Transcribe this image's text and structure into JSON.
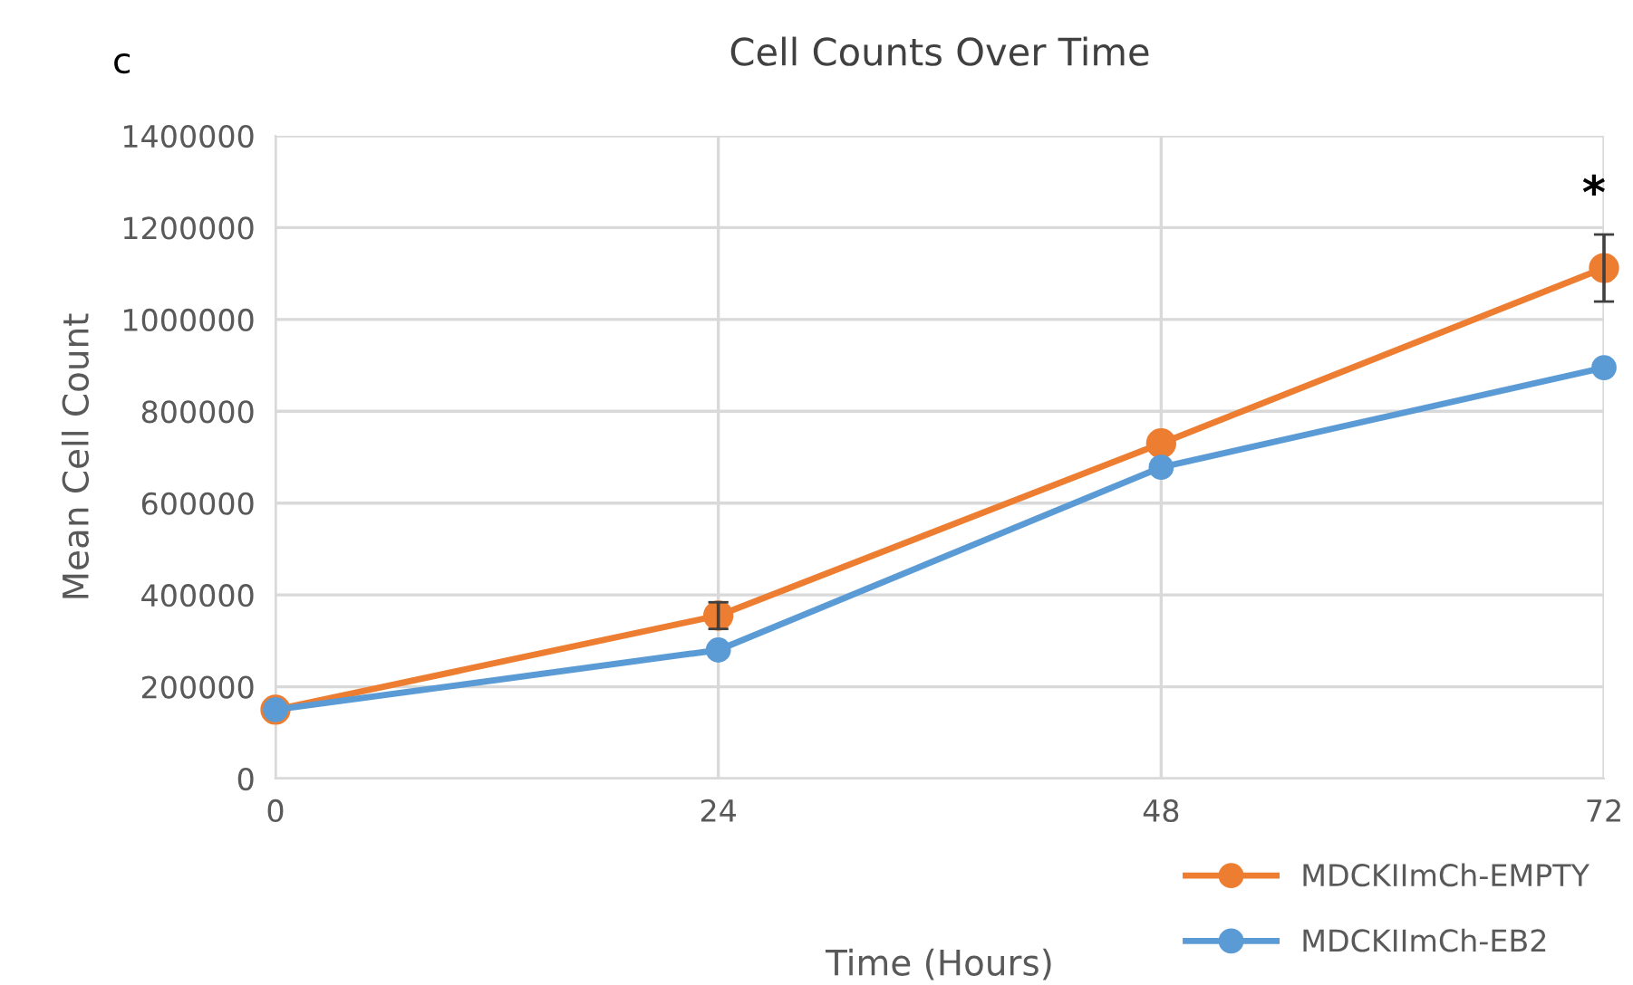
{
  "chart_data": {
    "type": "line",
    "title": "Cell Counts Over Time",
    "xlabel": "Time (Hours)",
    "ylabel": "Mean Cell Count",
    "x": [
      0,
      24,
      48,
      72
    ],
    "xlim": [
      0,
      72
    ],
    "xticks": [
      0,
      24,
      48,
      72
    ],
    "ylim": [
      0,
      1400000
    ],
    "yticks": [
      0,
      200000,
      400000,
      600000,
      800000,
      1000000,
      1200000,
      1400000
    ],
    "series": [
      {
        "name": "MDCKIImCh-EMPTY",
        "color": "#ed7d31",
        "values": [
          150000,
          355000,
          730000,
          1112000
        ],
        "errors": [
          null,
          29000,
          null,
          73000
        ]
      },
      {
        "name": "MDCKIImCh-EB2",
        "color": "#5b9bd5",
        "values": [
          150000,
          280000,
          678000,
          895000
        ]
      }
    ],
    "annotations": [
      "c",
      {
        "text": "*",
        "x": 72,
        "y": 1189000
      }
    ],
    "grid": true,
    "legend": "bottom right",
    "marker": "circle",
    "line_style": "solid"
  }
}
